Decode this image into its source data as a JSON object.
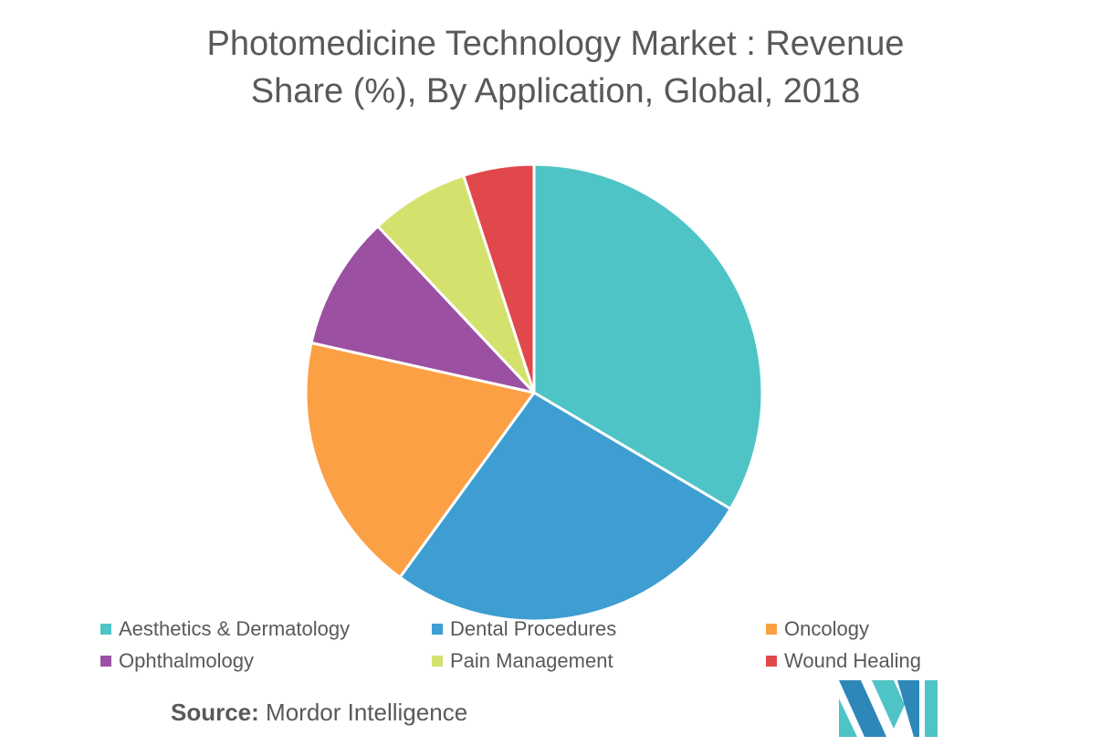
{
  "chart_data": {
    "type": "pie",
    "title_line1": "Photomedicine Technology Market : Revenue",
    "title_line2": "Share (%), By Application, Global, 2018",
    "slices": [
      {
        "label": "Aesthetics & Dermatology",
        "value": 33.5,
        "color": "#4fc4c7"
      },
      {
        "label": "Dental Procedures",
        "value": 26.5,
        "color": "#3e9ed1"
      },
      {
        "label": "Oncology",
        "value": 18.5,
        "color": "#fca046"
      },
      {
        "label": "Ophthalmology",
        "value": 9.5,
        "color": "#9b50a2"
      },
      {
        "label": "Pain Management",
        "value": 7.0,
        "color": "#d4e16c"
      },
      {
        "label": "Wound Healing",
        "value": 5.0,
        "color": "#e1484b"
      }
    ],
    "legend_position": "bottom"
  },
  "source": {
    "prefix": "Source:",
    "text": " Mordor Intelligence"
  },
  "logo": {
    "icon": "mordor-intelligence-logo",
    "colors": [
      "#2d88b9",
      "#4fc4c7"
    ]
  }
}
